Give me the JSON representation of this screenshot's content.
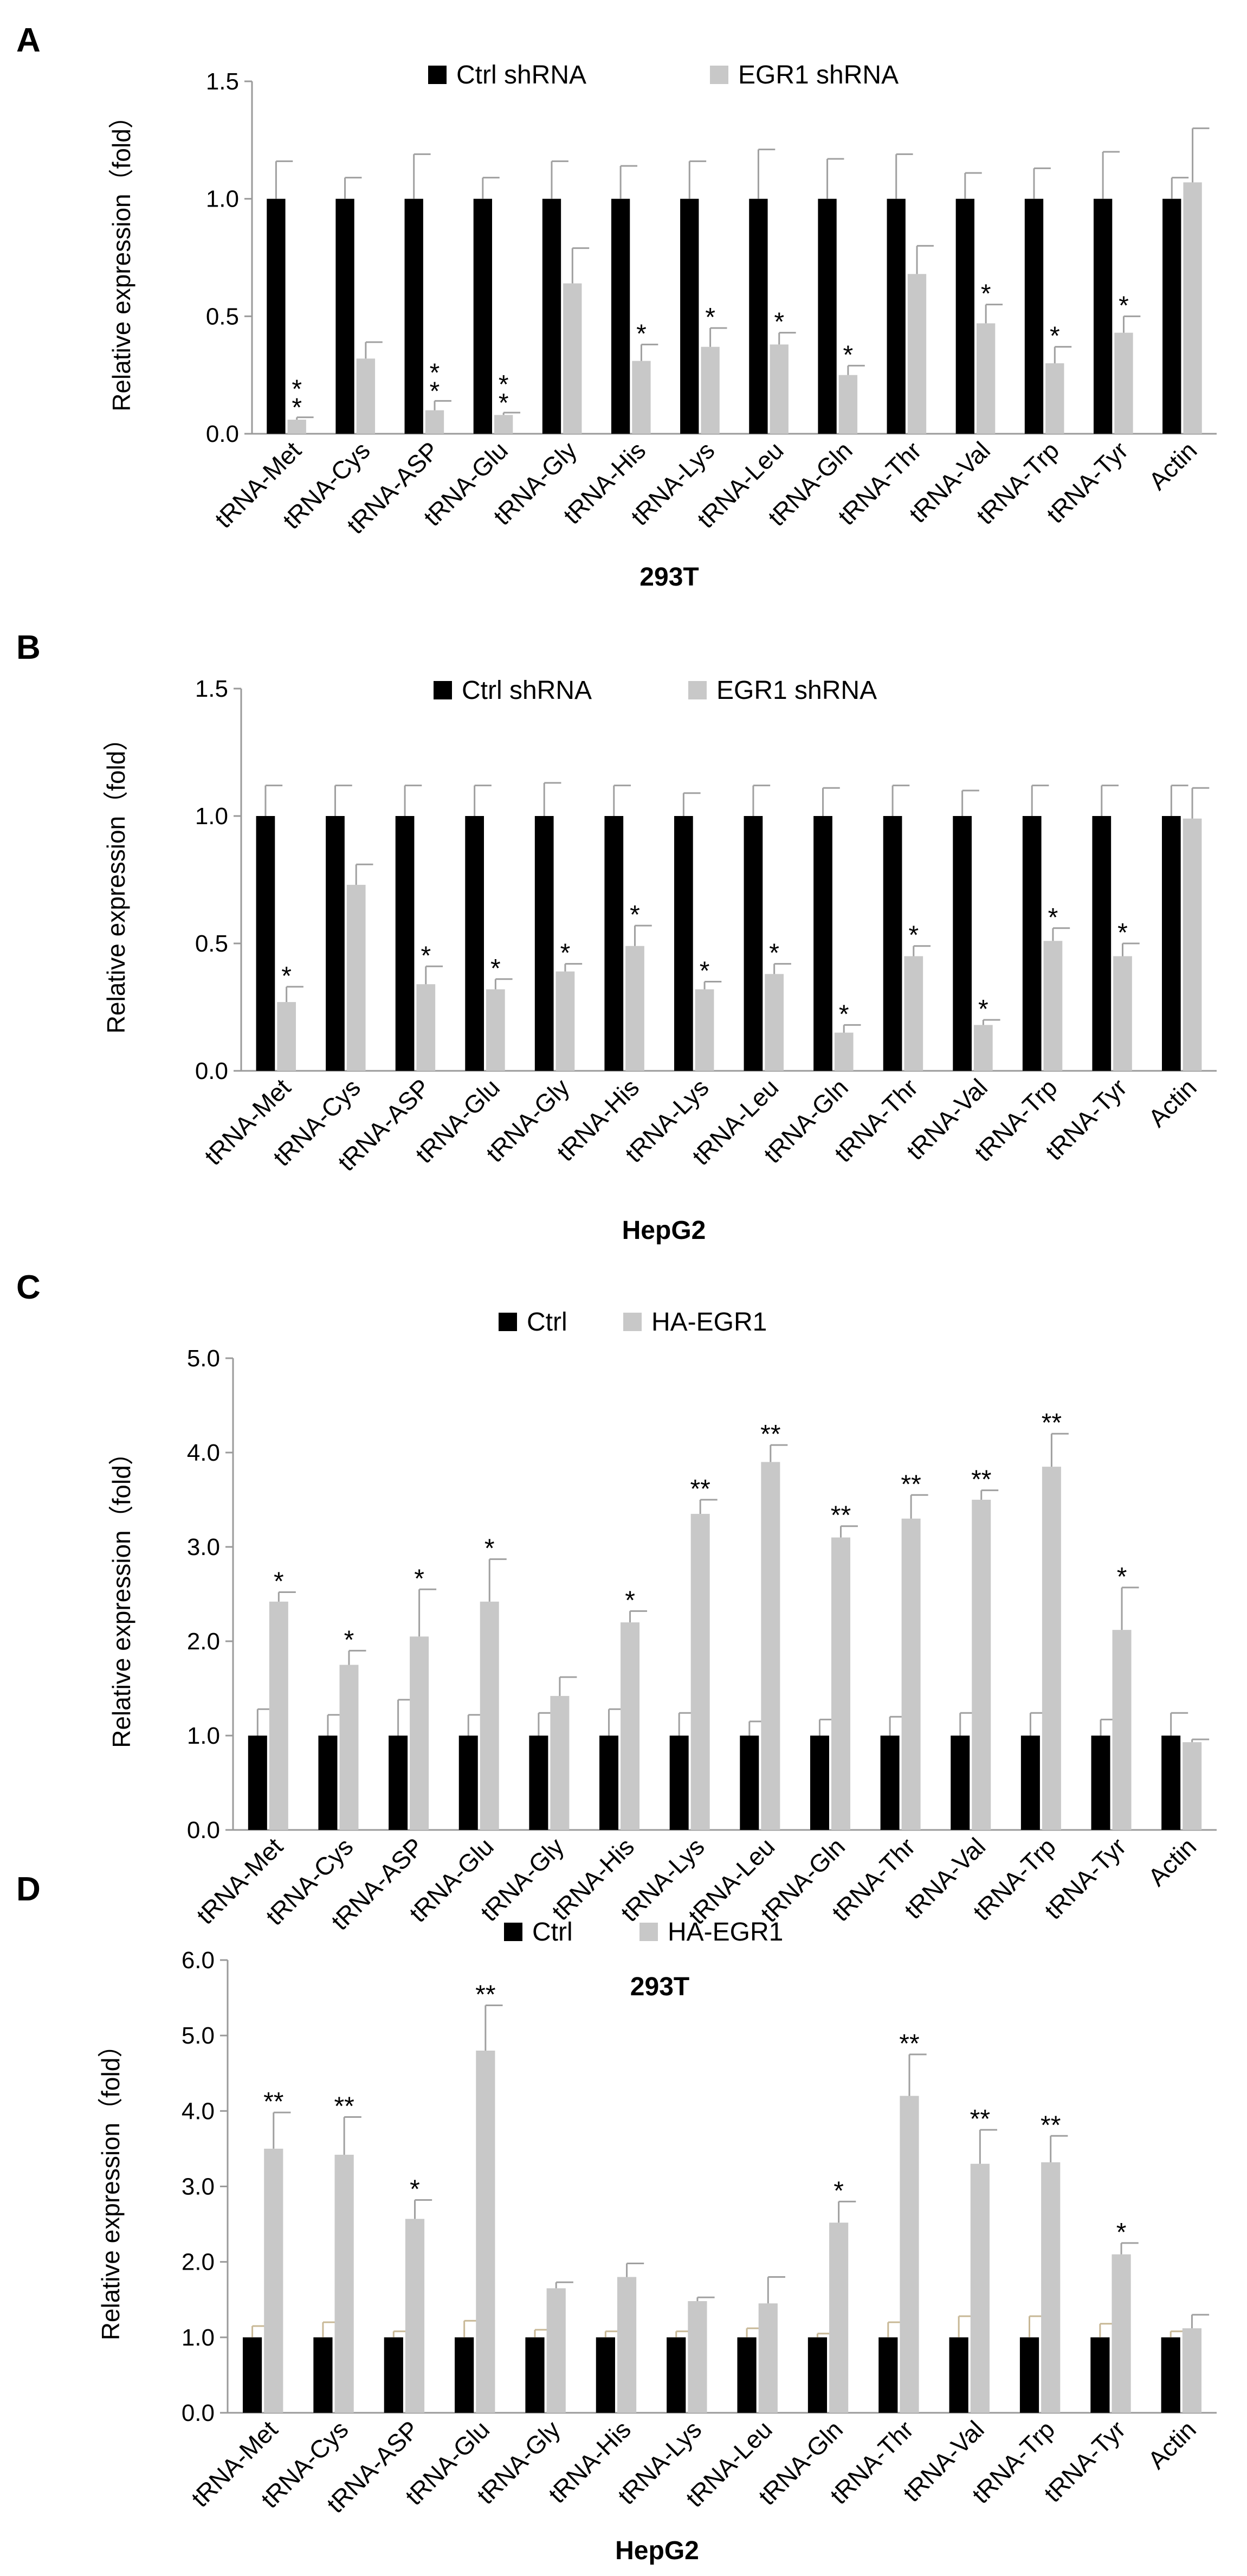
{
  "colors": {
    "ctrl": "#000000",
    "treat": "#c8c8c8",
    "axis": "#9a9a9a",
    "error_bar_ctrl": "#a0a0a0",
    "error_bar_treat": "#a0a0a0",
    "error_bar_ctrl_D": "#c8b896"
  },
  "chart_data": [
    {
      "panel": "A",
      "type": "bar",
      "title": "",
      "xlabel": "293T",
      "ylabel": "Relative expression（fold）",
      "ylim": [
        0,
        1.5
      ],
      "yticks": [
        "0.0",
        "0.5",
        "1.0",
        "1.5"
      ],
      "legend_position": "top-center",
      "categories": [
        "tRNA-Met",
        "tRNA-Cys",
        "tRNA-ASP",
        "tRNA-Glu",
        "tRNA-Gly",
        "tRNA-His",
        "tRNA-Lys",
        "tRNA-Leu",
        "tRNA-Gln",
        "tRNA-Thr",
        "tRNA-Val",
        "tRNA-Trp",
        "tRNA-Tyr",
        "Actin"
      ],
      "series": [
        {
          "name": "Ctrl shRNA",
          "values": [
            1,
            1,
            1,
            1,
            1,
            1,
            1,
            1,
            1,
            1,
            1,
            1,
            1,
            1
          ],
          "errors": [
            0.16,
            0.09,
            0.19,
            0.09,
            0.16,
            0.14,
            0.16,
            0.21,
            0.17,
            0.19,
            0.11,
            0.13,
            0.2,
            0.09
          ]
        },
        {
          "name": "EGR1 shRNA",
          "values": [
            0.06,
            0.32,
            0.1,
            0.08,
            0.64,
            0.31,
            0.37,
            0.38,
            0.25,
            0.68,
            0.47,
            0.3,
            0.43,
            1.07
          ],
          "errors": [
            0.01,
            0.07,
            0.04,
            0.01,
            0.15,
            0.07,
            0.08,
            0.05,
            0.04,
            0.12,
            0.08,
            0.07,
            0.07,
            0.23
          ]
        }
      ],
      "significance": [
        "**",
        "",
        "**",
        "**",
        "",
        "*",
        "*",
        "*",
        "*",
        "",
        "*",
        "*",
        "*",
        ""
      ]
    },
    {
      "panel": "B",
      "type": "bar",
      "title": "",
      "xlabel": "HepG2",
      "ylabel": "Relative expression（fold）",
      "ylim": [
        0,
        1.5
      ],
      "yticks": [
        "0.0",
        "0.5",
        "1.0",
        "1.5"
      ],
      "legend_position": "top-center",
      "categories": [
        "tRNA-Met",
        "tRNA-Cys",
        "tRNA-ASP",
        "tRNA-Glu",
        "tRNA-Gly",
        "tRNA-His",
        "tRNA-Lys",
        "tRNA-Leu",
        "tRNA-Gln",
        "tRNA-Thr",
        "tRNA-Val",
        "tRNA-Trp",
        "tRNA-Tyr",
        "Actin"
      ],
      "series": [
        {
          "name": "Ctrl shRNA",
          "values": [
            1,
            1,
            1,
            1,
            1,
            1,
            1,
            1,
            1,
            1,
            1,
            1,
            1,
            1
          ],
          "errors": [
            0.12,
            0.12,
            0.12,
            0.12,
            0.13,
            0.12,
            0.09,
            0.12,
            0.11,
            0.12,
            0.1,
            0.12,
            0.12,
            0.12
          ]
        },
        {
          "name": "EGR1 shRNA",
          "values": [
            0.27,
            0.73,
            0.34,
            0.32,
            0.39,
            0.49,
            0.32,
            0.38,
            0.15,
            0.45,
            0.18,
            0.51,
            0.45,
            0.99
          ],
          "errors": [
            0.06,
            0.08,
            0.07,
            0.04,
            0.03,
            0.08,
            0.03,
            0.04,
            0.03,
            0.04,
            0.02,
            0.05,
            0.05,
            0.12
          ]
        }
      ],
      "significance": [
        "*",
        "",
        "*",
        "*",
        "*",
        "*",
        "*",
        "*",
        "*",
        "*",
        "*",
        "*",
        "*",
        ""
      ]
    },
    {
      "panel": "C",
      "type": "bar",
      "title": "",
      "xlabel": "293T",
      "ylabel": "Relative expression（fold）",
      "ylim": [
        0,
        5.0
      ],
      "yticks": [
        "0.0",
        "1.0",
        "2.0",
        "3.0",
        "4.0",
        "5.0"
      ],
      "legend_position": "top-center",
      "categories": [
        "tRNA-Met",
        "tRNA-Cys",
        "tRNA-ASP",
        "tRNA-Glu",
        "tRNA-Gly",
        "tRNA-His",
        "tRNA-Lys",
        "tRNA-Leu",
        "tRNA-Gln",
        "tRNA-Thr",
        "tRNA-Val",
        "tRNA-Trp",
        "tRNA-Tyr",
        "Actin"
      ],
      "series": [
        {
          "name": "Ctrl",
          "values": [
            1,
            1,
            1,
            1,
            1,
            1,
            1,
            1,
            1,
            1,
            1,
            1,
            1,
            1
          ],
          "errors": [
            0.28,
            0.22,
            0.38,
            0.22,
            0.24,
            0.28,
            0.24,
            0.15,
            0.17,
            0.2,
            0.24,
            0.24,
            0.17,
            0.24
          ]
        },
        {
          "name": "HA-EGR1",
          "values": [
            2.42,
            1.75,
            2.05,
            2.42,
            1.42,
            2.2,
            3.35,
            3.9,
            3.1,
            3.3,
            3.5,
            3.85,
            2.12,
            0.93
          ],
          "errors": [
            0.1,
            0.15,
            0.5,
            0.45,
            0.2,
            0.12,
            0.15,
            0.18,
            0.12,
            0.25,
            0.1,
            0.35,
            0.45,
            0.03
          ]
        }
      ],
      "significance": [
        "*",
        "*",
        "*",
        "*",
        "",
        "*",
        "**",
        "**",
        "**",
        "**",
        "**",
        "**",
        "*",
        ""
      ]
    },
    {
      "panel": "D",
      "type": "bar",
      "title": "",
      "xlabel": "HepG2",
      "ylabel": "Relative expression（fold）",
      "ylim": [
        0,
        6.0
      ],
      "yticks": [
        "0.0",
        "1.0",
        "2.0",
        "3.0",
        "4.0",
        "5.0",
        "6.0"
      ],
      "legend_position": "top-center",
      "categories": [
        "tRNA-Met",
        "tRNA-Cys",
        "tRNA-ASP",
        "tRNA-Glu",
        "tRNA-Gly",
        "tRNA-His",
        "tRNA-Lys",
        "tRNA-Leu",
        "tRNA-Gln",
        "tRNA-Thr",
        "tRNA-Val",
        "tRNA-Trp",
        "tRNA-Tyr",
        "Actin"
      ],
      "series": [
        {
          "name": "Ctrl",
          "values": [
            1,
            1,
            1,
            1,
            1,
            1,
            1,
            1,
            1,
            1,
            1,
            1,
            1,
            1
          ],
          "errors": [
            0.15,
            0.2,
            0.08,
            0.22,
            0.1,
            0.08,
            0.08,
            0.12,
            0.05,
            0.2,
            0.28,
            0.28,
            0.18,
            0.08
          ]
        },
        {
          "name": "HA-EGR1",
          "values": [
            3.5,
            3.42,
            2.57,
            4.8,
            1.65,
            1.8,
            1.48,
            1.45,
            2.52,
            4.2,
            3.3,
            3.32,
            2.1,
            1.12
          ],
          "errors": [
            0.48,
            0.5,
            0.25,
            0.6,
            0.08,
            0.18,
            0.05,
            0.35,
            0.28,
            0.55,
            0.45,
            0.35,
            0.15,
            0.18
          ]
        }
      ],
      "significance": [
        "**",
        "**",
        "*",
        "**",
        "",
        "",
        "",
        "",
        "*",
        "**",
        "**",
        "**",
        "*",
        ""
      ]
    }
  ]
}
